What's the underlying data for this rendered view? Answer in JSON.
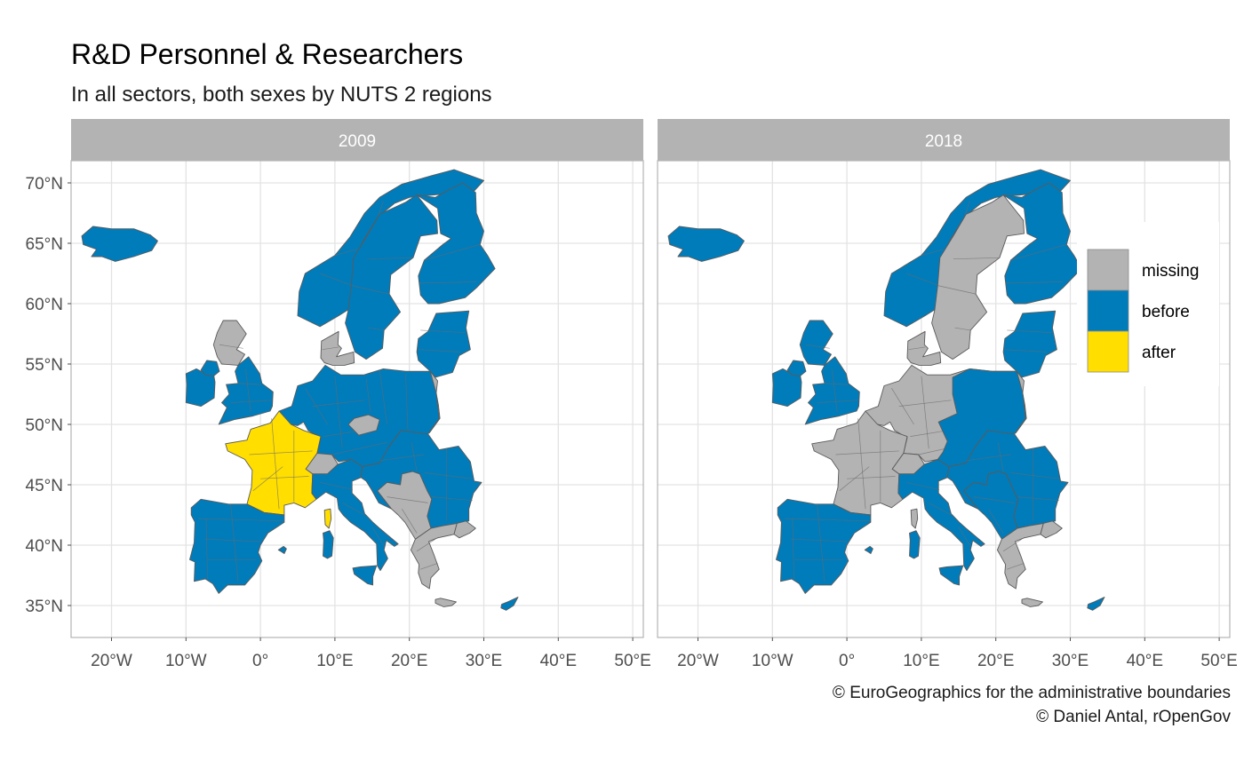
{
  "title": "R&D Personnel & Researchers",
  "subtitle": "In all sectors, both sexes by NUTS 2 regions",
  "caption": {
    "line1": "© EuroGeographics for the administrative boundaries",
    "line2": "© Daniel Antal, rOpenGov"
  },
  "axes": {
    "lat_ticks": [
      {
        "value": 35,
        "label": "35°N"
      },
      {
        "value": 40,
        "label": "40°N"
      },
      {
        "value": 45,
        "label": "45°N"
      },
      {
        "value": 50,
        "label": "50°N"
      },
      {
        "value": 55,
        "label": "55°N"
      },
      {
        "value": 60,
        "label": "60°N"
      },
      {
        "value": 65,
        "label": "65°N"
      },
      {
        "value": 70,
        "label": "70°N"
      }
    ],
    "lon_ticks": [
      {
        "value": -20,
        "label": "20°W"
      },
      {
        "value": -10,
        "label": "10°W"
      },
      {
        "value": 0,
        "label": "0°"
      },
      {
        "value": 10,
        "label": "10°E"
      },
      {
        "value": 20,
        "label": "20°E"
      },
      {
        "value": 30,
        "label": "30°E"
      },
      {
        "value": 40,
        "label": "40°E"
      },
      {
        "value": 50,
        "label": "50°E"
      }
    ],
    "lon_range": [
      -25.2,
      51.2
    ],
    "lat_range": [
      32.5,
      72.5
    ],
    "grid": true
  },
  "legend": {
    "position": "right, inside 2018 panel",
    "items": [
      {
        "label": "missing",
        "color": "#b3b3b3"
      },
      {
        "label": "before",
        "color": "#007cbb"
      },
      {
        "label": "after",
        "color": "#ffde00"
      }
    ]
  },
  "panels": [
    {
      "label": "2009",
      "regions": [
        {
          "name": "Iceland",
          "category": "before"
        },
        {
          "name": "Ireland",
          "category": "before"
        },
        {
          "name": "Northern Ireland",
          "category": "before"
        },
        {
          "name": "Scotland",
          "category": "missing"
        },
        {
          "name": "England and Wales",
          "category": "before"
        },
        {
          "name": "Norway",
          "category": "before"
        },
        {
          "name": "Sweden",
          "category": "before"
        },
        {
          "name": "Finland",
          "category": "before"
        },
        {
          "name": "Denmark",
          "category": "missing"
        },
        {
          "name": "Estonia, Latvia, Lithuania",
          "category": "before"
        },
        {
          "name": "Belarus area / Poland east",
          "category": "missing"
        },
        {
          "name": "Benelux, Germany, Poland, Czechia, Austria",
          "category": "before"
        },
        {
          "name": "Czech centre",
          "category": "missing"
        },
        {
          "name": "France",
          "category": "after"
        },
        {
          "name": "Corsica",
          "category": "after"
        },
        {
          "name": "Switzerland",
          "category": "missing"
        },
        {
          "name": "Italy",
          "category": "before"
        },
        {
          "name": "Sardinia",
          "category": "before"
        },
        {
          "name": "Sicily",
          "category": "before"
        },
        {
          "name": "Slovenia, Croatia, Hungary, Slovakia, Romania, Bulgaria",
          "category": "before"
        },
        {
          "name": "Western Balkans",
          "category": "missing"
        },
        {
          "name": "Greece",
          "category": "missing"
        },
        {
          "name": "Crete",
          "category": "missing"
        },
        {
          "name": "Spain and Portugal",
          "category": "before"
        },
        {
          "name": "Balearic Islands",
          "category": "before"
        },
        {
          "name": "Cyprus",
          "category": "before"
        },
        {
          "name": "Turkey (Thrace)",
          "category": "missing"
        }
      ]
    },
    {
      "label": "2018",
      "regions": [
        {
          "name": "Iceland",
          "category": "before"
        },
        {
          "name": "Ireland",
          "category": "before"
        },
        {
          "name": "Northern Ireland",
          "category": "before"
        },
        {
          "name": "Scotland",
          "category": "before"
        },
        {
          "name": "England and Wales",
          "category": "before"
        },
        {
          "name": "Norway",
          "category": "before"
        },
        {
          "name": "Sweden",
          "category": "missing"
        },
        {
          "name": "Finland",
          "category": "before"
        },
        {
          "name": "Denmark",
          "category": "missing"
        },
        {
          "name": "Estonia, Latvia, Lithuania",
          "category": "before"
        },
        {
          "name": "Belarus area / Poland east",
          "category": "missing"
        },
        {
          "name": "Benelux, Germany, France, Switzerland",
          "category": "missing"
        },
        {
          "name": "Poland, Czechia, Austria",
          "category": "before"
        },
        {
          "name": "Corsica",
          "category": "missing"
        },
        {
          "name": "Italy",
          "category": "before"
        },
        {
          "name": "Sardinia",
          "category": "before"
        },
        {
          "name": "Sicily",
          "category": "before"
        },
        {
          "name": "Slovenia, Croatia, Hungary, Slovakia, Romania, Bulgaria",
          "category": "before"
        },
        {
          "name": "Western Balkans",
          "category": "before"
        },
        {
          "name": "Greece",
          "category": "missing"
        },
        {
          "name": "Crete",
          "category": "missing"
        },
        {
          "name": "Spain and Portugal",
          "category": "before"
        },
        {
          "name": "Balearic Islands",
          "category": "before"
        },
        {
          "name": "Cyprus",
          "category": "before"
        },
        {
          "name": "Turkey (Thrace)",
          "category": "missing"
        }
      ]
    }
  ]
}
